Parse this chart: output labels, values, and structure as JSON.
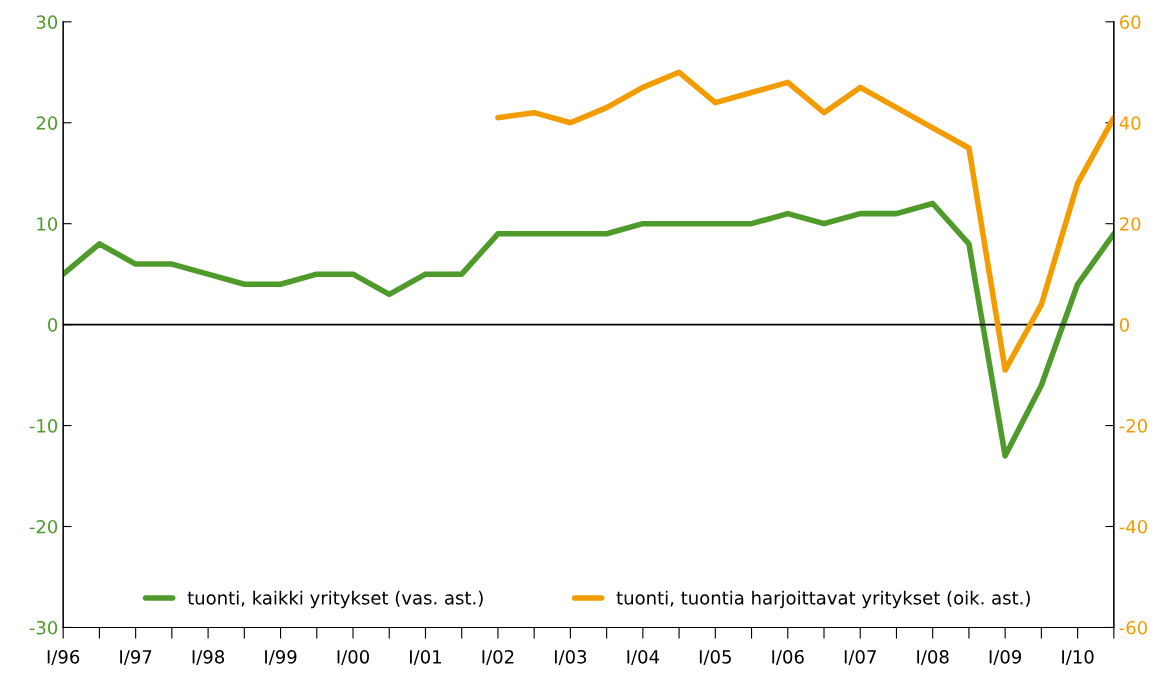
{
  "chart_data": {
    "type": "line",
    "categories": [
      "I/96",
      null,
      "I/97",
      null,
      "I/98",
      null,
      "I/99",
      null,
      "I/00",
      null,
      "I/01",
      null,
      "I/02",
      null,
      "I/03",
      null,
      "I/04",
      null,
      "I/05",
      null,
      "I/06",
      null,
      "I/07",
      null,
      "I/08",
      null,
      "I/09",
      null,
      "I/10",
      null
    ],
    "series": [
      {
        "name": "tuonti, kaikki yritykset (vas. ast.)",
        "color": "#4e9a2a",
        "values": [
          5,
          8,
          6,
          6,
          5,
          4,
          4,
          5,
          5,
          3,
          5,
          5,
          9,
          9,
          9,
          9,
          10,
          10,
          10,
          10,
          11,
          10,
          11,
          11,
          12,
          8,
          -13,
          -6,
          4,
          9
        ]
      },
      {
        "name": "tuonti, tuontia harjoittavat yritykset (oik. ast.)",
        "color": "#f29c00",
        "axis": "y2",
        "values": [
          null,
          null,
          null,
          null,
          null,
          null,
          null,
          null,
          null,
          null,
          null,
          null,
          41,
          42,
          40,
          43,
          47,
          50,
          44,
          46,
          48,
          42,
          47,
          43,
          39,
          35,
          -9,
          4,
          28,
          41
        ]
      }
    ],
    "ylim": [
      -30,
      30
    ],
    "yticks": [
      -30,
      -20,
      -10,
      0,
      10,
      20,
      30
    ],
    "y2lim": [
      -60,
      60
    ],
    "y2ticks": [
      -60,
      -40,
      -20,
      0,
      20,
      40,
      60
    ],
    "ref_lines": [
      {
        "axis": "y",
        "value": 0,
        "color": "#000000"
      }
    ],
    "grid": false,
    "legend": "bottom",
    "marker": "none",
    "line_style": "solid"
  }
}
